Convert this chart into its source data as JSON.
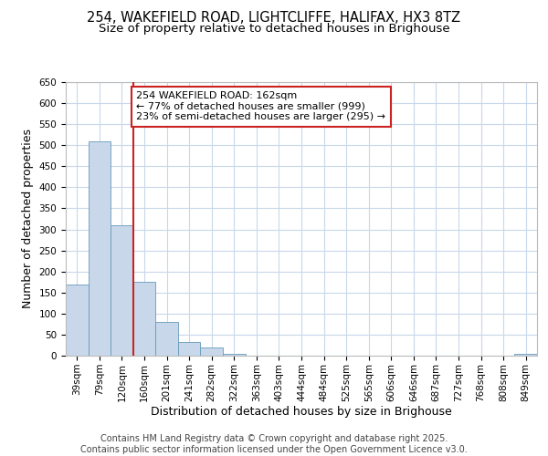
{
  "title_line1": "254, WAKEFIELD ROAD, LIGHTCLIFFE, HALIFAX, HX3 8TZ",
  "title_line2": "Size of property relative to detached houses in Brighouse",
  "xlabel": "Distribution of detached houses by size in Brighouse",
  "ylabel": "Number of detached properties",
  "categories": [
    "39sqm",
    "79sqm",
    "120sqm",
    "160sqm",
    "201sqm",
    "241sqm",
    "282sqm",
    "322sqm",
    "363sqm",
    "403sqm",
    "444sqm",
    "484sqm",
    "525sqm",
    "565sqm",
    "606sqm",
    "646sqm",
    "687sqm",
    "727sqm",
    "768sqm",
    "808sqm",
    "849sqm"
  ],
  "values": [
    170,
    510,
    310,
    175,
    80,
    33,
    20,
    5,
    1,
    0,
    0,
    0,
    0,
    0,
    0,
    0,
    0,
    0,
    0,
    0,
    4
  ],
  "bar_color": "#c8d8ea",
  "bar_edge_color": "#6699bb",
  "property_line_x": 2.5,
  "annotation_text": "254 WAKEFIELD ROAD: 162sqm\n← 77% of detached houses are smaller (999)\n23% of semi-detached houses are larger (295) →",
  "annotation_box_color": "#ffffff",
  "annotation_box_edge_color": "#cc2222",
  "property_line_color": "#cc2222",
  "background_color": "#ffffff",
  "grid_color": "#c8d8ea",
  "ylim": [
    0,
    650
  ],
  "yticks": [
    0,
    50,
    100,
    150,
    200,
    250,
    300,
    350,
    400,
    450,
    500,
    550,
    600,
    650
  ],
  "footer_text": "Contains HM Land Registry data © Crown copyright and database right 2025.\nContains public sector information licensed under the Open Government Licence v3.0.",
  "title_fontsize": 10.5,
  "subtitle_fontsize": 9.5,
  "axis_label_fontsize": 9,
  "tick_fontsize": 7.5,
  "annotation_fontsize": 8,
  "footer_fontsize": 7
}
